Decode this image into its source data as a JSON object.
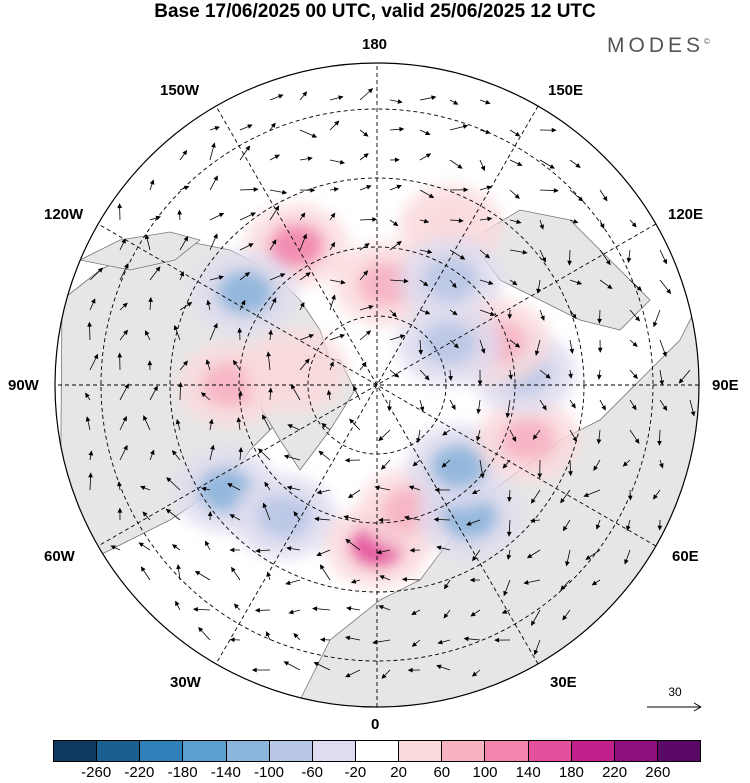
{
  "header": {
    "title": "Base 17/06/2025 00 UTC, valid 25/06/2025 12 UTC",
    "brand": "MODES",
    "brand_mark": "©"
  },
  "map": {
    "projection": "north-polar-stereographic",
    "longitude_labels": {
      "top": "180",
      "bottom": "0",
      "left": "90W",
      "right": "90E",
      "upper_left": "150W",
      "upper_right": "150E",
      "left_upper": "120W",
      "right_upper": "120E",
      "left_lower": "60W",
      "right_lower": "60E",
      "lower_left": "30W",
      "lower_right": "30E"
    },
    "reference_vector": {
      "label": "30"
    }
  },
  "colorbar": {
    "colors": [
      "#0d3a5e",
      "#1b5f8f",
      "#2f7fb8",
      "#5a9fd0",
      "#8cb5dc",
      "#b9c8e6",
      "#dedcef",
      "#ffffff",
      "#fadadd",
      "#f7b3c2",
      "#f285ad",
      "#e4509c",
      "#c02089",
      "#8e0f7d",
      "#5a0a66"
    ],
    "tick_labels": [
      "-260",
      "-220",
      "-180",
      "-140",
      "-100",
      "-60",
      "-20",
      "20",
      "60",
      "100",
      "140",
      "180",
      "220",
      "260"
    ]
  },
  "anomaly_blobs": [
    {
      "lon": 155,
      "lat": 52,
      "sign": 1,
      "level": 1
    },
    {
      "lon": -150,
      "lat": 55,
      "sign": 1,
      "level": 3
    },
    {
      "lon": 175,
      "lat": 68,
      "sign": 1,
      "level": 2
    },
    {
      "lon": 145,
      "lat": 62,
      "sign": -1,
      "level": 2
    },
    {
      "lon": -125,
      "lat": 55,
      "sign": -1,
      "level": 3
    },
    {
      "lon": -90,
      "lat": 58,
      "sign": 1,
      "level": 2
    },
    {
      "lon": -55,
      "lat": 50,
      "sign": -1,
      "level": 3
    },
    {
      "lon": -35,
      "lat": 55,
      "sign": -1,
      "level": 2
    },
    {
      "lon": 0,
      "lat": 55,
      "sign": 1,
      "level": 4
    },
    {
      "lon": 15,
      "lat": 62,
      "sign": 1,
      "level": 2
    },
    {
      "lon": 35,
      "lat": 55,
      "sign": -1,
      "level": 3
    },
    {
      "lon": 45,
      "lat": 65,
      "sign": -1,
      "level": 3
    },
    {
      "lon": 70,
      "lat": 55,
      "sign": 1,
      "level": 2
    },
    {
      "lon": 95,
      "lat": 58,
      "sign": -1,
      "level": 2
    },
    {
      "lon": 110,
      "lat": 62,
      "sign": 1,
      "level": 2
    },
    {
      "lon": 120,
      "lat": 72,
      "sign": -1,
      "level": 2
    },
    {
      "lon": -100,
      "lat": 72,
      "sign": 1,
      "level": 1
    }
  ]
}
